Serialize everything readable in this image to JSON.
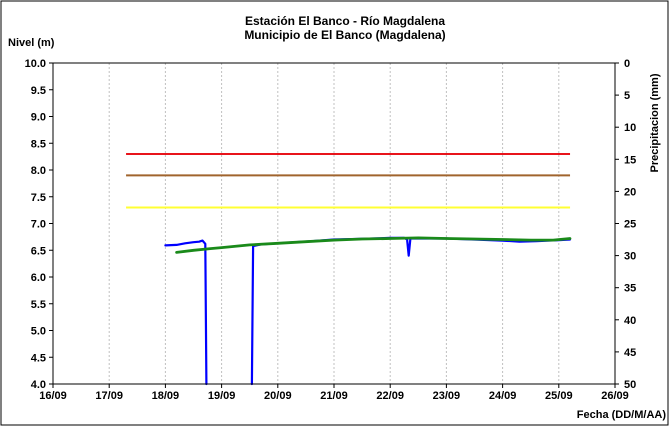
{
  "chart_data": {
    "type": "line",
    "title_line1": "Estación El Banco - Río Magdalena",
    "title_line2": "Municipio de El Banco (Magdalena)",
    "ylabel": "Nivel (m)",
    "y2label": "Precipitacion (mm)",
    "xlabel": "Fecha (DD/M/AA)",
    "ylim": [
      4.0,
      10.0
    ],
    "y2lim": [
      0,
      50
    ],
    "xlim": [
      "16/09",
      "26/09"
    ],
    "x_ticks": [
      "16/09",
      "17/09",
      "18/09",
      "19/09",
      "20/09",
      "21/09",
      "22/09",
      "23/09",
      "24/09",
      "25/09",
      "26/09"
    ],
    "y_ticks": [
      "4.0",
      "4.5",
      "5.0",
      "5.5",
      "6.0",
      "6.5",
      "7.0",
      "7.5",
      "8.0",
      "8.5",
      "9.0",
      "9.5",
      "10.0"
    ],
    "y2_ticks": [
      "0",
      "5",
      "10",
      "15",
      "20",
      "25",
      "30",
      "35",
      "40",
      "45",
      "50"
    ],
    "thresholds": [
      {
        "value": 8.3,
        "color": "#e8141b",
        "x_start": 17.3,
        "x_end": 25.2
      },
      {
        "value": 7.9,
        "color": "#a0642d",
        "x_start": 17.3,
        "x_end": 25.2
      },
      {
        "value": 7.3,
        "color": "#ffff33",
        "x_start": 17.3,
        "x_end": 25.2
      }
    ],
    "series": [
      {
        "color": "#0000ff",
        "segments": [
          [
            [
              18.0,
              6.59
            ],
            [
              18.2,
              6.6
            ],
            [
              18.35,
              6.63
            ],
            [
              18.5,
              6.65
            ],
            [
              18.6,
              6.66
            ],
            [
              18.66,
              6.68
            ],
            [
              18.71,
              6.62
            ],
            [
              18.73,
              4.0
            ]
          ],
          [
            [
              19.54,
              4.0
            ],
            [
              19.56,
              6.58
            ],
            [
              19.7,
              6.61
            ],
            [
              20.0,
              6.63
            ],
            [
              20.3,
              6.65
            ],
            [
              20.6,
              6.67
            ],
            [
              21.0,
              6.7
            ],
            [
              21.4,
              6.71
            ],
            [
              21.7,
              6.72
            ],
            [
              22.0,
              6.73
            ],
            [
              22.25,
              6.73
            ],
            [
              22.3,
              6.7
            ],
            [
              22.33,
              6.4
            ],
            [
              22.36,
              6.72
            ],
            [
              22.6,
              6.72
            ],
            [
              23.0,
              6.72
            ],
            [
              23.5,
              6.7
            ],
            [
              24.0,
              6.68
            ],
            [
              24.3,
              6.66
            ],
            [
              24.6,
              6.67
            ],
            [
              25.0,
              6.69
            ],
            [
              25.2,
              6.7
            ]
          ]
        ]
      },
      {
        "color": "#1a8a1a",
        "segments": [
          [
            [
              18.2,
              6.46
            ],
            [
              18.5,
              6.5
            ],
            [
              18.8,
              6.53
            ],
            [
              19.0,
              6.55
            ],
            [
              19.5,
              6.6
            ],
            [
              20.0,
              6.63
            ],
            [
              20.5,
              6.66
            ],
            [
              21.0,
              6.69
            ],
            [
              21.5,
              6.71
            ],
            [
              22.0,
              6.72
            ],
            [
              22.5,
              6.73
            ],
            [
              23.0,
              6.72
            ],
            [
              23.5,
              6.71
            ],
            [
              24.0,
              6.7
            ],
            [
              24.5,
              6.69
            ],
            [
              24.9,
              6.69
            ],
            [
              25.2,
              6.72
            ]
          ]
        ]
      }
    ]
  }
}
